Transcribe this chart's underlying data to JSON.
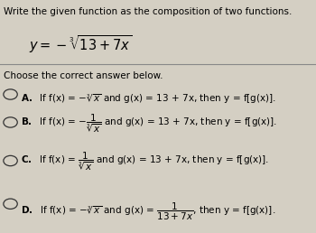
{
  "title": "Write the given function as the composition of two functions.",
  "subtitle": "Choose the correct answer below.",
  "background_color": "#d4cfc3",
  "text_color": "#000000",
  "separator_color": "#888888",
  "radio_color": "#333333"
}
